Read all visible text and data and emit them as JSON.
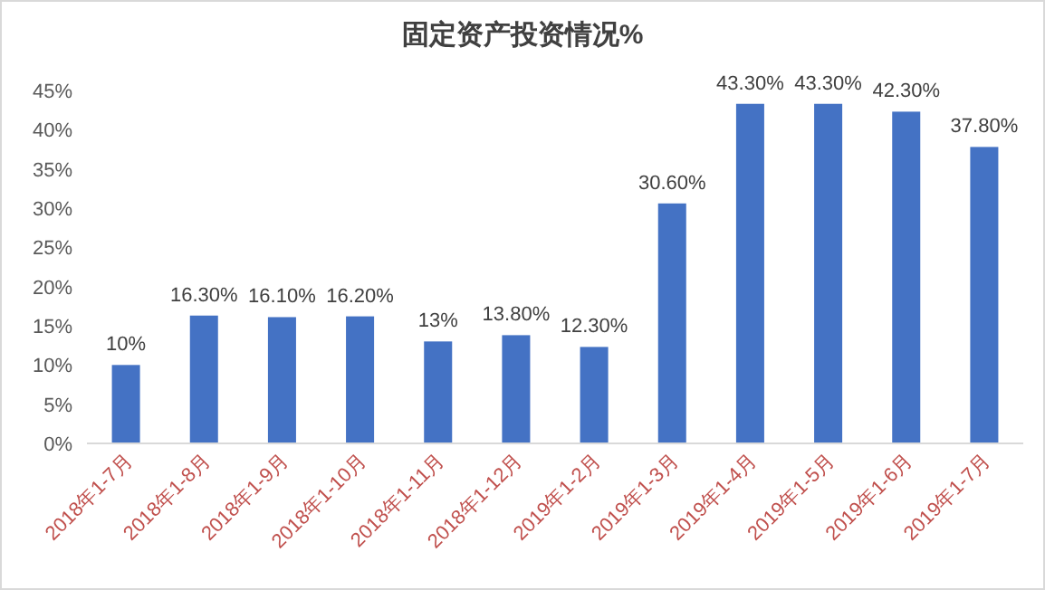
{
  "chart_data": {
    "type": "bar",
    "title": "固定资产投资情况%",
    "categories": [
      "2018年1-7月",
      "2018年1-8月",
      "2018年1-9月",
      "2018年1-10月",
      "2018年1-11月",
      "2018年1-12月",
      "2019年1-2月",
      "2019年1-3月",
      "2019年1-4月",
      "2019年1-5月",
      "2019年1-6月",
      "2019年1-7月"
    ],
    "values": [
      10,
      16.3,
      16.1,
      16.2,
      13,
      13.8,
      12.3,
      30.6,
      43.3,
      43.3,
      42.3,
      37.8
    ],
    "value_labels": [
      "10%",
      "16.30%",
      "16.10%",
      "16.20%",
      "13%",
      "13.80%",
      "12.30%",
      "30.60%",
      "43.30%",
      "43.30%",
      "42.30%",
      "37.80%"
    ],
    "color": "#4472c4",
    "ylim": [
      0,
      45
    ],
    "yticks": [
      {
        "value": 0,
        "label": "0%"
      },
      {
        "value": 5,
        "label": "5%"
      },
      {
        "value": 10,
        "label": "10%"
      },
      {
        "value": 15,
        "label": "15%"
      },
      {
        "value": 20,
        "label": "20%"
      },
      {
        "value": 25,
        "label": "25%"
      },
      {
        "value": 30,
        "label": "30%"
      },
      {
        "value": 35,
        "label": "35%"
      },
      {
        "value": 40,
        "label": "40%"
      },
      {
        "value": 45,
        "label": "45%"
      }
    ]
  }
}
